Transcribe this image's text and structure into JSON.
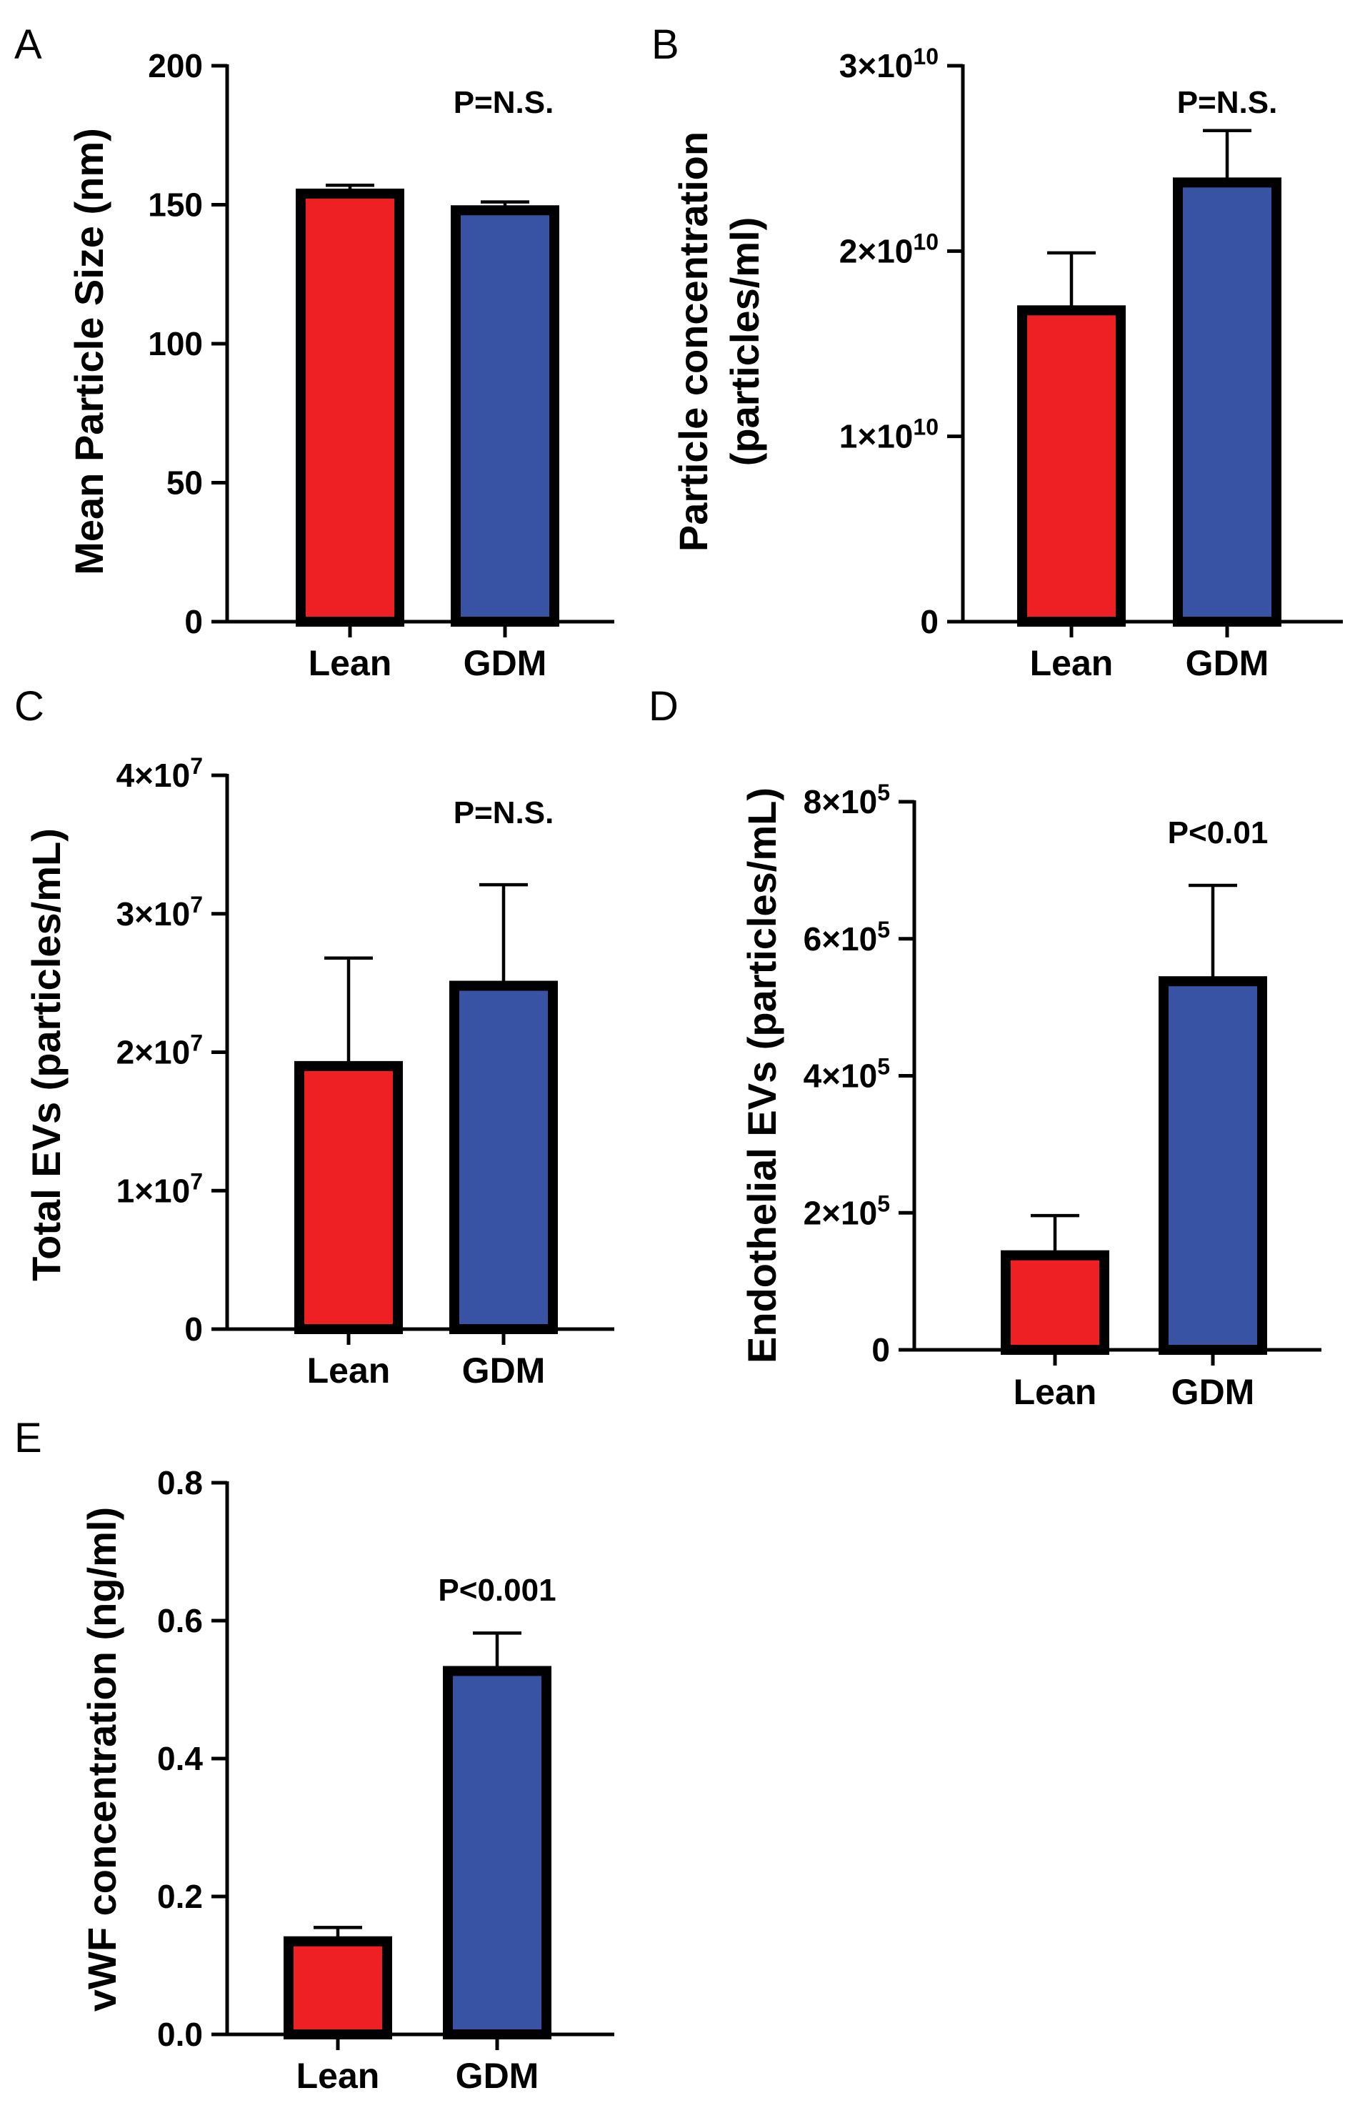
{
  "colors": {
    "lean": "#ee2024",
    "gdm": "#3853a4"
  },
  "chart_data": [
    {
      "panel": "A",
      "type": "bar",
      "ylabel": "Mean Particle Size  (nm)",
      "categories": [
        "Lean",
        "GDM"
      ],
      "values": [
        154,
        148
      ],
      "errors": [
        3,
        3
      ],
      "ylim": [
        0,
        200
      ],
      "yticks": [
        0,
        50,
        100,
        150,
        200
      ],
      "ytick_labels": [
        "0",
        "50",
        "100",
        "150",
        "200"
      ],
      "annotation": "P=N.S."
    },
    {
      "panel": "B",
      "type": "bar",
      "ylabel": "Particle concentration",
      "ylabel2": "(particles/ml)",
      "categories": [
        "Lean",
        "GDM"
      ],
      "values": [
        16800000000.0,
        23700000000.0
      ],
      "errors": [
        3100000000.0,
        2800000000.0
      ],
      "ylim": [
        0,
        30000000000.0
      ],
      "yticks": [
        0,
        10000000000.0,
        20000000000.0,
        30000000000.0
      ],
      "ytick_labels": [
        "0",
        "1×10",
        "2×10",
        "3×10"
      ],
      "ytick_exps": [
        "",
        "10",
        "10",
        "10"
      ],
      "annotation": "P=N.S."
    },
    {
      "panel": "C",
      "type": "bar",
      "ylabel": "Total EVs (particles/mL)",
      "categories": [
        "Lean",
        "GDM"
      ],
      "values": [
        19000000.0,
        24800000.0
      ],
      "errors": [
        7800000.0,
        7300000.0
      ],
      "ylim": [
        0,
        40000000.0
      ],
      "yticks": [
        0,
        10000000.0,
        20000000.0,
        30000000.0,
        40000000.0
      ],
      "ytick_labels": [
        "0",
        "1×10",
        "2×10",
        "3×10",
        "4×10"
      ],
      "ytick_exps": [
        "",
        "7",
        "7",
        "7",
        "7"
      ],
      "annotation": "P=N.S."
    },
    {
      "panel": "D",
      "type": "bar",
      "ylabel": "Endothelial EVs (particles/mL)",
      "categories": [
        "Lean",
        "GDM"
      ],
      "values": [
        138000.0,
        538000.0
      ],
      "errors": [
        58000.0,
        140000.0
      ],
      "ylim": [
        0,
        800000.0
      ],
      "yticks": [
        0,
        200000.0,
        400000.0,
        600000.0,
        800000.0
      ],
      "ytick_labels": [
        "0",
        "2×10",
        "4×10",
        "6×10",
        "8×10"
      ],
      "ytick_exps": [
        "",
        "5",
        "5",
        "5",
        "5"
      ],
      "annotation": "P<0.01"
    },
    {
      "panel": "E",
      "type": "bar",
      "ylabel": "vWF concentration (ng/ml)",
      "categories": [
        "Lean",
        "GDM"
      ],
      "values": [
        0.135,
        0.527
      ],
      "errors": [
        0.02,
        0.055
      ],
      "ylim": [
        0,
        0.8
      ],
      "yticks": [
        0,
        0.2,
        0.4,
        0.6,
        0.8
      ],
      "ytick_labels": [
        "0.0",
        "0.2",
        "0.4",
        "0.6",
        "0.8"
      ],
      "annotation": "P<0.001"
    }
  ]
}
